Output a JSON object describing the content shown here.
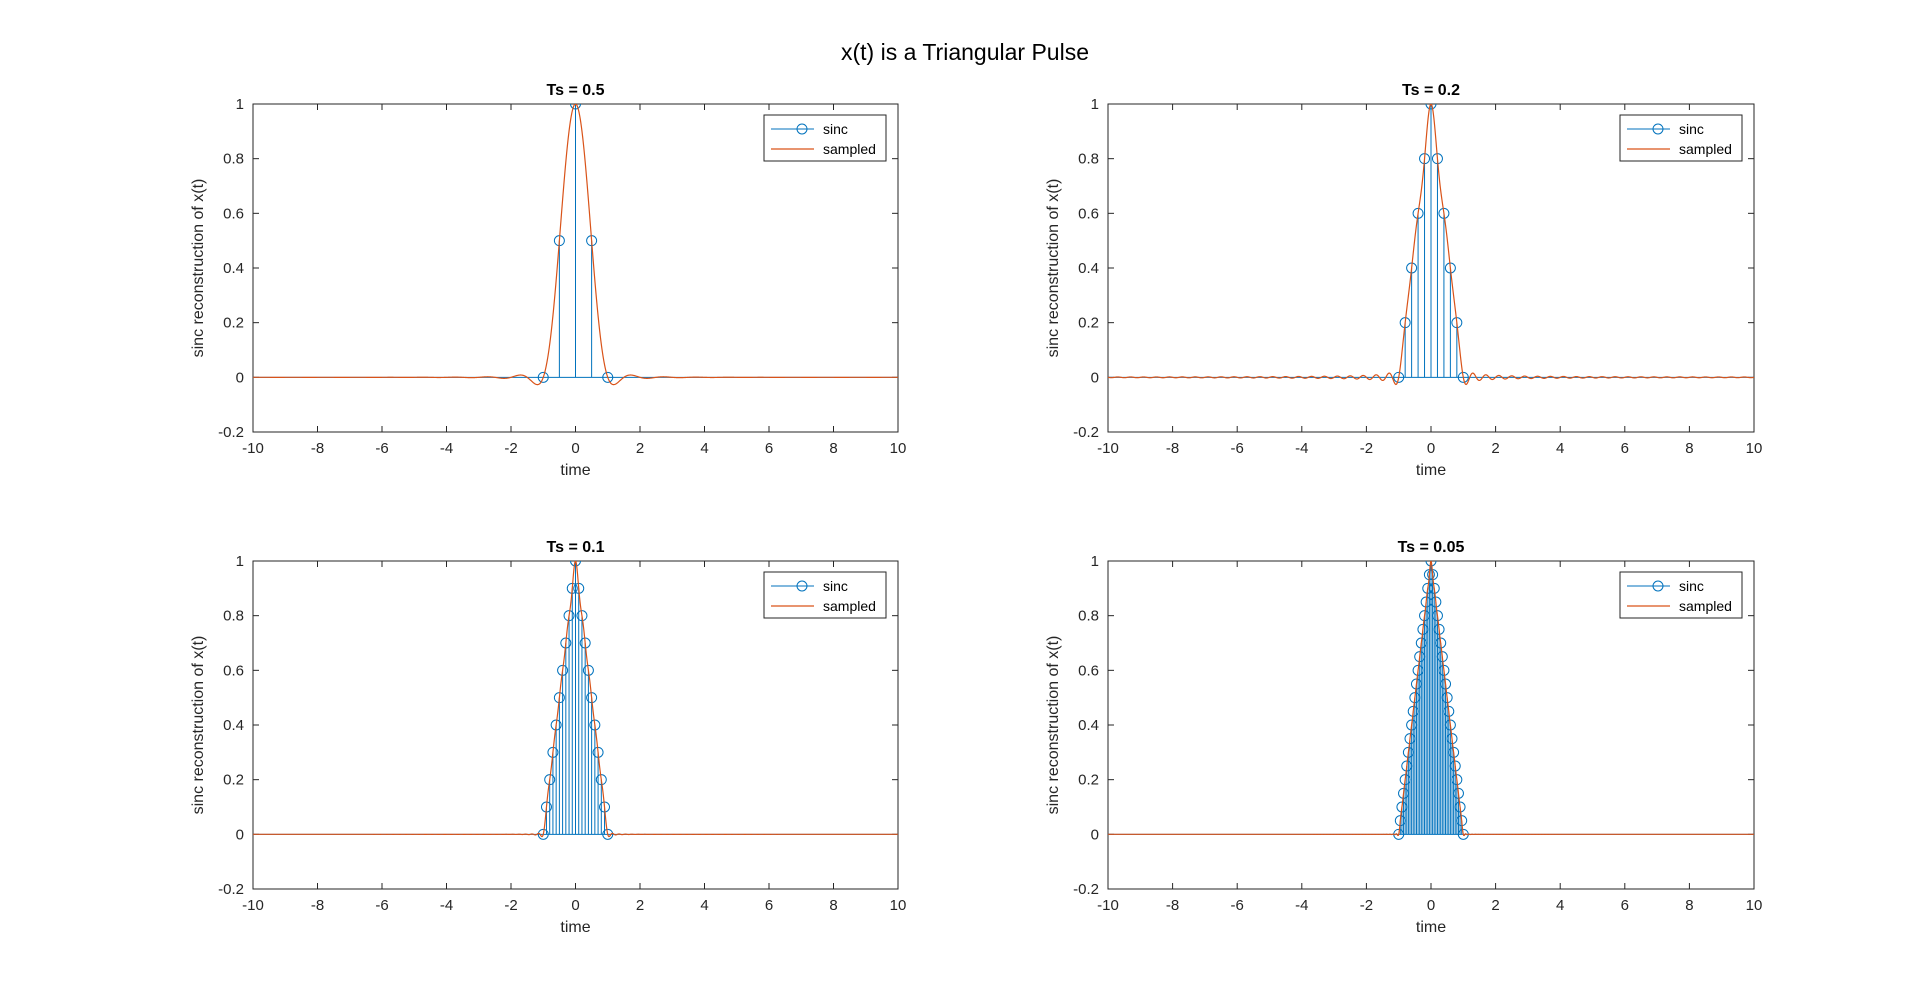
{
  "figure": {
    "title": "x(t) is a Triangular Pulse"
  },
  "colors": {
    "sinc": "#0072BD",
    "sampled": "#D95319",
    "axes": "#262626"
  },
  "chart_data": [
    {
      "type": "stem+line",
      "title": "Ts = 0.5",
      "Ts": 0.5,
      "xlabel": "time",
      "ylabel": "sinc reconstruction of x(t)",
      "xlim": [
        -10,
        10
      ],
      "ylim": [
        -0.2,
        1
      ],
      "xticks": [
        "-10",
        "-8",
        "-6",
        "-4",
        "-2",
        "0",
        "2",
        "4",
        "6",
        "8",
        "10"
      ],
      "yticks": [
        "-0.2",
        "0",
        "0.2",
        "0.4",
        "0.6",
        "0.8",
        "1"
      ],
      "legend": {
        "position": "top-right",
        "entries": [
          "sinc",
          "sampled"
        ]
      },
      "grid": false,
      "series": [
        {
          "name": "sinc",
          "style": "stem",
          "x": [
            -1,
            -0.5,
            0,
            0.5,
            1
          ],
          "y": [
            0,
            0.5,
            1,
            0.5,
            0
          ]
        },
        {
          "name": "sampled",
          "style": "line",
          "signal": "sinc reconstruction of triangular pulse 1-|t| on [-1,1]"
        }
      ]
    },
    {
      "type": "stem+line",
      "title": "Ts = 0.2",
      "Ts": 0.2,
      "xlabel": "time",
      "ylabel": "sinc reconstruction of x(t)",
      "xlim": [
        -10,
        10
      ],
      "ylim": [
        -0.2,
        1
      ],
      "xticks": [
        "-10",
        "-8",
        "-6",
        "-4",
        "-2",
        "0",
        "2",
        "4",
        "6",
        "8",
        "10"
      ],
      "yticks": [
        "-0.2",
        "0",
        "0.2",
        "0.4",
        "0.6",
        "0.8",
        "1"
      ],
      "legend": {
        "position": "top-right",
        "entries": [
          "sinc",
          "sampled"
        ]
      },
      "grid": false,
      "series": [
        {
          "name": "sinc",
          "style": "stem",
          "x": [
            -1,
            -0.8,
            -0.6,
            -0.4,
            -0.2,
            0,
            0.2,
            0.4,
            0.6,
            0.8,
            1
          ],
          "y": [
            0,
            0.2,
            0.4,
            0.6,
            0.8,
            1,
            0.8,
            0.6,
            0.4,
            0.2,
            0
          ]
        },
        {
          "name": "sampled",
          "style": "line",
          "signal": "sinc reconstruction of triangular pulse 1-|t| on [-1,1]"
        }
      ]
    },
    {
      "type": "stem+line",
      "title": "Ts = 0.1",
      "Ts": 0.1,
      "xlabel": "time",
      "ylabel": "sinc reconstruction of x(t)",
      "xlim": [
        -10,
        10
      ],
      "ylim": [
        -0.2,
        1
      ],
      "xticks": [
        "-10",
        "-8",
        "-6",
        "-4",
        "-2",
        "0",
        "2",
        "4",
        "6",
        "8",
        "10"
      ],
      "yticks": [
        "-0.2",
        "0",
        "0.2",
        "0.4",
        "0.6",
        "0.8",
        "1"
      ],
      "legend": {
        "position": "top-right",
        "entries": [
          "sinc",
          "sampled"
        ]
      },
      "grid": false,
      "series": [
        {
          "name": "sinc",
          "style": "stem",
          "x": [
            -1,
            -0.9,
            -0.8,
            -0.7,
            -0.6,
            -0.5,
            -0.4,
            -0.3,
            -0.2,
            -0.1,
            0,
            0.1,
            0.2,
            0.3,
            0.4,
            0.5,
            0.6,
            0.7,
            0.8,
            0.9,
            1
          ],
          "y": [
            0,
            0.1,
            0.2,
            0.3,
            0.4,
            0.5,
            0.6,
            0.7,
            0.8,
            0.9,
            1,
            0.9,
            0.8,
            0.7,
            0.6,
            0.5,
            0.4,
            0.3,
            0.2,
            0.1,
            0
          ]
        },
        {
          "name": "sampled",
          "style": "line",
          "signal": "sinc reconstruction of triangular pulse 1-|t| on [-1,1]"
        }
      ]
    },
    {
      "type": "stem+line",
      "title": "Ts = 0.05",
      "Ts": 0.05,
      "xlabel": "time",
      "ylabel": "sinc reconstruction of x(t)",
      "xlim": [
        -10,
        10
      ],
      "ylim": [
        -0.2,
        1
      ],
      "xticks": [
        "-10",
        "-8",
        "-6",
        "-4",
        "-2",
        "0",
        "2",
        "4",
        "6",
        "8",
        "10"
      ],
      "yticks": [
        "-0.2",
        "0",
        "0.2",
        "0.4",
        "0.6",
        "0.8",
        "1"
      ],
      "legend": {
        "position": "top-right",
        "entries": [
          "sinc",
          "sampled"
        ]
      },
      "grid": false,
      "series": [
        {
          "name": "sinc",
          "style": "stem",
          "x": [
            -1,
            -0.95,
            -0.9,
            -0.85,
            -0.8,
            -0.75,
            -0.7,
            -0.65,
            -0.6,
            -0.55,
            -0.5,
            -0.45,
            -0.4,
            -0.35,
            -0.3,
            -0.25,
            -0.2,
            -0.15,
            -0.1,
            -0.05,
            0,
            0.05,
            0.1,
            0.15,
            0.2,
            0.25,
            0.3,
            0.35,
            0.4,
            0.45,
            0.5,
            0.55,
            0.6,
            0.65,
            0.7,
            0.75,
            0.8,
            0.85,
            0.9,
            0.95,
            1
          ],
          "y": [
            0,
            0.05,
            0.1,
            0.15,
            0.2,
            0.25,
            0.3,
            0.35,
            0.4,
            0.45,
            0.5,
            0.55,
            0.6,
            0.65,
            0.7,
            0.75,
            0.8,
            0.85,
            0.9,
            0.95,
            1,
            0.95,
            0.9,
            0.85,
            0.8,
            0.75,
            0.7,
            0.65,
            0.6,
            0.55,
            0.5,
            0.45,
            0.4,
            0.35,
            0.3,
            0.25,
            0.2,
            0.15,
            0.1,
            0.05,
            0
          ]
        },
        {
          "name": "sampled",
          "style": "line",
          "signal": "sinc reconstruction of triangular pulse 1-|t| on [-1,1]"
        }
      ]
    }
  ]
}
